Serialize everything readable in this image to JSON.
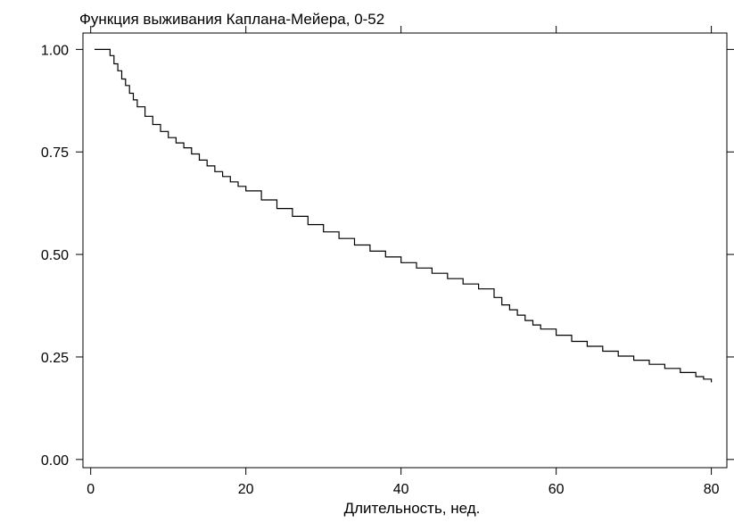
{
  "chart_data": {
    "type": "line",
    "title": "Функция выживания Каплана-Мейера, 0-52",
    "xlabel": "Длительность, нед.",
    "ylabel": "",
    "xlim": [
      -1,
      82
    ],
    "ylim": [
      -0.02,
      1.04
    ],
    "x_ticks": [
      0,
      20,
      40,
      60,
      80
    ],
    "x_tick_labels": [
      "0",
      "20",
      "40",
      "60",
      "80"
    ],
    "y_ticks": [
      0,
      0.25,
      0.5,
      0.75,
      1
    ],
    "y_tick_labels": [
      "0.00",
      "0.25",
      "0.50",
      "0.75",
      "1.00"
    ],
    "grid": false,
    "legend": "none",
    "colors": {
      "line": "#000000",
      "axes": "#000000",
      "background": "#ffffff"
    },
    "series": [
      {
        "step": true,
        "x": [
          0.5,
          2,
          2.5,
          3,
          3.5,
          4,
          4.5,
          5,
          5.5,
          6,
          7,
          8,
          9,
          10,
          11,
          12,
          13,
          14,
          15,
          16,
          17,
          18,
          19,
          20,
          22,
          24,
          26,
          28,
          30,
          32,
          34,
          36,
          38,
          40,
          42,
          44,
          46,
          48,
          50,
          52,
          53,
          54,
          55,
          56,
          57,
          58,
          60,
          62,
          64,
          66,
          68,
          70,
          72,
          74,
          76,
          78,
          79,
          80
        ],
        "y": [
          1.0,
          1.0,
          0.985,
          0.965,
          0.948,
          0.928,
          0.912,
          0.893,
          0.877,
          0.86,
          0.837,
          0.817,
          0.8,
          0.785,
          0.772,
          0.76,
          0.745,
          0.73,
          0.716,
          0.702,
          0.69,
          0.677,
          0.666,
          0.655,
          0.633,
          0.612,
          0.593,
          0.573,
          0.555,
          0.539,
          0.523,
          0.508,
          0.494,
          0.48,
          0.467,
          0.454,
          0.441,
          0.428,
          0.416,
          0.395,
          0.377,
          0.365,
          0.352,
          0.339,
          0.328,
          0.318,
          0.303,
          0.288,
          0.276,
          0.264,
          0.252,
          0.242,
          0.232,
          0.222,
          0.212,
          0.202,
          0.196,
          0.188
        ]
      }
    ]
  }
}
